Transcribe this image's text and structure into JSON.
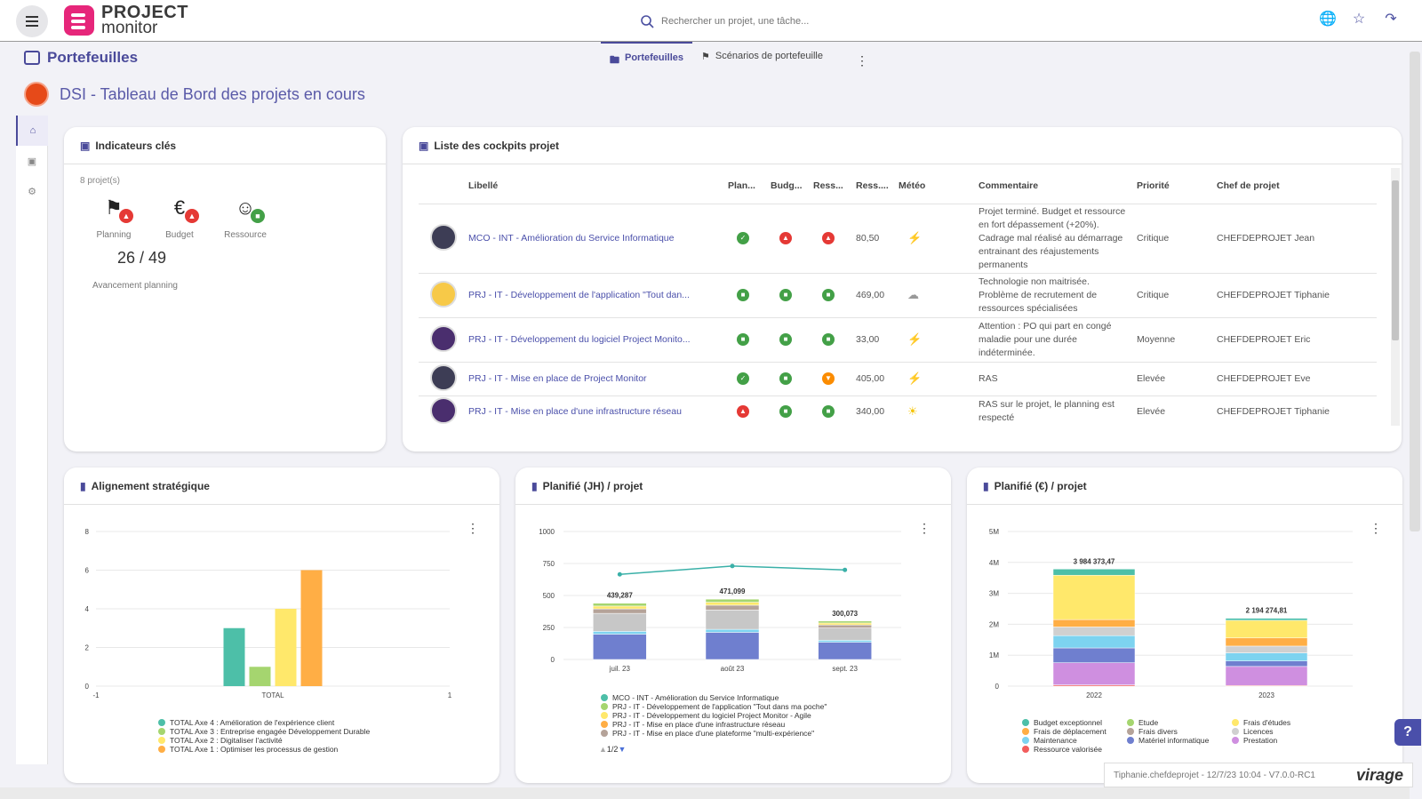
{
  "app": {
    "logo_line1": "PROJECT",
    "logo_line2": "monitor"
  },
  "search": {
    "placeholder": "Rechercher un projet, une tâche..."
  },
  "header": {
    "section_title": "Portefeuilles",
    "tabs": [
      {
        "label": "Portefeuilles",
        "active": true
      },
      {
        "label": "Scénarios de portefeuille",
        "active": false
      }
    ],
    "dashboard_title": "DSI - Tableau de Bord des projets en cours"
  },
  "kpi": {
    "title": "Indicateurs clés",
    "count": "8 projet(s)",
    "items": [
      {
        "label": "Planning",
        "status": "red"
      },
      {
        "label": "Budget",
        "status": "red"
      },
      {
        "label": "Ressource",
        "status": "green"
      }
    ],
    "value": "26 / 49",
    "sub": "Avancement planning"
  },
  "cockpits": {
    "title": "Liste des cockpits projet",
    "columns": [
      "Libellé",
      "Plan...",
      "Budg...",
      "Ress...",
      "Ress....",
      "Météo",
      "Commentaire",
      "Priorité",
      "Chef de projet"
    ],
    "rows": [
      {
        "label": "MCO - INT - Amélioration du Service Informatique",
        "plan": "check",
        "budget": "up-red",
        "ress": "up-red",
        "ress_val": "80,50",
        "meteo": "storm",
        "comment": "Projet terminé. Budget et ressource en fort dépassement (+20%). Cadrage mal réalisé au démarrage entrainant des réajustements permanents",
        "priority": "Critique",
        "manager": "CHEFDEPROJET Jean"
      },
      {
        "label": "PRJ - IT - Développement de l'application \"Tout dan...",
        "plan": "green",
        "budget": "green",
        "ress": "green",
        "ress_val": "469,00",
        "meteo": "cloud",
        "comment": "Technologie non maitrisée. Problème de recrutement de ressources spécialisées",
        "priority": "Critique",
        "manager": "CHEFDEPROJET Tiphanie"
      },
      {
        "label": "PRJ - IT - Développement du logiciel Project Monito...",
        "plan": "green",
        "budget": "green",
        "ress": "green",
        "ress_val": "33,00",
        "meteo": "storm",
        "comment": "Attention : PO qui part en congé maladie pour une durée indéterminée.",
        "priority": "Moyenne",
        "manager": "CHEFDEPROJET Eric"
      },
      {
        "label": "PRJ - IT - Mise en place de Project Monitor",
        "plan": "check",
        "budget": "green",
        "ress": "down-orange",
        "ress_val": "405,00",
        "meteo": "storm",
        "comment": "RAS",
        "priority": "Elevée",
        "manager": "CHEFDEPROJET Eve"
      },
      {
        "label": "PRJ - IT - Mise en place d'une infrastructure réseau",
        "plan": "up-red",
        "budget": "green",
        "ress": "green",
        "ress_val": "340,00",
        "meteo": "sun",
        "comment": "RAS sur le projet, le planning est respecté",
        "priority": "Elevée",
        "manager": "CHEFDEPROJET Tiphanie"
      }
    ]
  },
  "chart_data": [
    {
      "type": "bar",
      "title": "Alignement stratégique",
      "xlabel": "TOTAL",
      "xticks": [
        "-1",
        "TOTAL",
        "1"
      ],
      "ylim": [
        0,
        8
      ],
      "yticks": [
        0,
        2,
        4,
        6,
        8
      ],
      "series": [
        {
          "name": "TOTAL Axe 4 : Amélioration de l'expérience client",
          "values": [
            3
          ],
          "color": "#4dbfa8"
        },
        {
          "name": "TOTAL Axe 3 : Entreprise engagée Développement Durable",
          "values": [
            1
          ],
          "color": "#a5d56f"
        },
        {
          "name": "TOTAL Axe 2 : Digitaliser l'activité",
          "values": [
            4
          ],
          "color": "#ffe86b"
        },
        {
          "name": "TOTAL Axe 1 : Optimiser les processus de gestion",
          "values": [
            6
          ],
          "color": "#ffae45"
        }
      ]
    },
    {
      "type": "bar",
      "title": "Planifié (JH) / projet",
      "categories": [
        "juil. 23",
        "août 23",
        "sept. 23"
      ],
      "ylim": [
        0,
        1000
      ],
      "yticks": [
        0,
        250,
        500,
        750,
        1000
      ],
      "totals": [
        "439,287",
        "471,099",
        "300,073"
      ],
      "total_values": [
        439.287,
        471.099,
        300.073
      ],
      "line_values": [
        665,
        730,
        700
      ],
      "series": [
        {
          "name": "MCO - INT - Amélioration du Service Informatique",
          "color": "#4dbfa8"
        },
        {
          "name": "PRJ - IT - Développement de l'application \"Tout dans ma poche\"",
          "color": "#a5d56f"
        },
        {
          "name": "PRJ - IT - Développement du logiciel Project Monitor - Agile",
          "color": "#ffe86b"
        },
        {
          "name": "PRJ - IT - Mise en place d'une infrastructure réseau",
          "color": "#ffae45"
        },
        {
          "name": "PRJ - IT - Mise en place d'une plateforme \"multi-expérience\"",
          "color": "#b5a399"
        }
      ],
      "pager": "1/2"
    },
    {
      "type": "bar",
      "title": "Planifié (€) / projet",
      "categories": [
        "2022",
        "2023"
      ],
      "ylim": [
        0,
        5000000
      ],
      "yticks": [
        "0",
        "1M",
        "2M",
        "3M",
        "4M",
        "5M"
      ],
      "totals": [
        "3 984 373,47",
        "2 194 274,81"
      ],
      "total_values": [
        3984373.47,
        2194274.81
      ],
      "series": [
        {
          "name": "Budget exceptionnel",
          "color": "#4dbfa8"
        },
        {
          "name": "Frais de déplacement",
          "color": "#ffae45"
        },
        {
          "name": "Maintenance",
          "color": "#7dd3f0"
        },
        {
          "name": "Ressource valorisée",
          "color": "#f25d5d"
        },
        {
          "name": "Etude",
          "color": "#a5d56f"
        },
        {
          "name": "Frais divers",
          "color": "#b5a399"
        },
        {
          "name": "Matériel informatique",
          "color": "#6f7fcf"
        },
        {
          "name": "Frais d'études",
          "color": "#ffe86b"
        },
        {
          "name": "Licences",
          "color": "#d0d0d0"
        },
        {
          "name": "Prestation",
          "color": "#cf8fe0"
        }
      ]
    }
  ],
  "footer": {
    "user": "Tiphanie.chefdeprojet - 12/7/23 10:04 - V7.0.0-RC1",
    "brand": "virage"
  },
  "help": "?"
}
